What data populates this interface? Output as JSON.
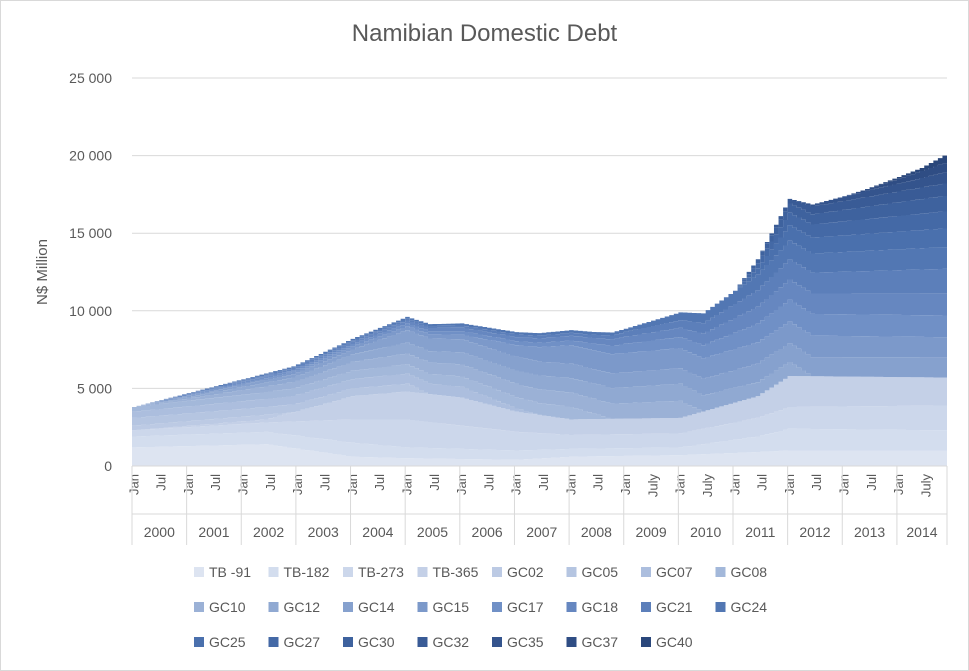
{
  "chart_data": {
    "type": "area",
    "stacked": true,
    "title": "Namibian Domestic Debt",
    "ylabel": "N$ Million",
    "ylim": [
      0,
      25000
    ],
    "yticks": [
      0,
      5000,
      10000,
      15000,
      20000,
      25000
    ],
    "ytick_labels": [
      "0",
      "5 000",
      "10 000",
      "15 000",
      "20 000",
      "25 000"
    ],
    "grid": true,
    "legend": "bottom",
    "start": "2000-01",
    "end": "2014-11",
    "month_labels": [
      {
        "month": "2000-01",
        "label": "Jan"
      },
      {
        "month": "2000-07",
        "label": "Jul"
      },
      {
        "month": "2001-01",
        "label": "Jan"
      },
      {
        "month": "2001-07",
        "label": "Jul"
      },
      {
        "month": "2002-01",
        "label": "Jan"
      },
      {
        "month": "2002-07",
        "label": "Jul"
      },
      {
        "month": "2003-01",
        "label": "Jan"
      },
      {
        "month": "2003-07",
        "label": "Jul"
      },
      {
        "month": "2004-01",
        "label": "Jan"
      },
      {
        "month": "2004-07",
        "label": "Jul"
      },
      {
        "month": "2005-01",
        "label": "Jan"
      },
      {
        "month": "2005-07",
        "label": "Jul"
      },
      {
        "month": "2006-01",
        "label": "Jan"
      },
      {
        "month": "2006-07",
        "label": "Jul"
      },
      {
        "month": "2007-01",
        "label": "Jan"
      },
      {
        "month": "2007-07",
        "label": "Jul"
      },
      {
        "month": "2008-01",
        "label": "Jan"
      },
      {
        "month": "2008-07",
        "label": "Jul"
      },
      {
        "month": "2009-01",
        "label": "Jan"
      },
      {
        "month": "2009-07",
        "label": "July"
      },
      {
        "month": "2010-01",
        "label": "Jan"
      },
      {
        "month": "2010-07",
        "label": "July"
      },
      {
        "month": "2011-01",
        "label": "Jan"
      },
      {
        "month": "2011-07",
        "label": "Jul"
      },
      {
        "month": "2012-01",
        "label": "Jan"
      },
      {
        "month": "2012-07",
        "label": "Jul"
      },
      {
        "month": "2013-01",
        "label": "Jan"
      },
      {
        "month": "2013-07",
        "label": "Jul"
      },
      {
        "month": "2014-01",
        "label": "Jan"
      },
      {
        "month": "2014-07",
        "label": "July"
      }
    ],
    "year_labels": [
      "2000",
      "2001",
      "2002",
      "2003",
      "2004",
      "2005",
      "2006",
      "2007",
      "2008",
      "2009",
      "2010",
      "2011",
      "2012",
      "2013",
      "2014"
    ],
    "series": [
      {
        "name": "TB -91",
        "color": "#dde4f1",
        "points": [
          [
            "2000-01",
            1200
          ],
          [
            "2002-06",
            1400
          ],
          [
            "2003-06",
            900
          ],
          [
            "2004-01",
            600
          ],
          [
            "2005-01",
            500
          ],
          [
            "2007-01",
            400
          ],
          [
            "2008-01",
            600
          ],
          [
            "2010-01",
            700
          ],
          [
            "2011-06",
            900
          ],
          [
            "2012-01",
            1000
          ],
          [
            "2014-11",
            1000
          ]
        ]
      },
      {
        "name": "TB-182",
        "color": "#d3ddee",
        "points": [
          [
            "2000-01",
            700
          ],
          [
            "2002-06",
            800
          ],
          [
            "2004-01",
            900
          ],
          [
            "2005-01",
            700
          ],
          [
            "2007-01",
            600
          ],
          [
            "2008-01",
            500
          ],
          [
            "2010-01",
            500
          ],
          [
            "2011-06",
            1000
          ],
          [
            "2012-01",
            1400
          ],
          [
            "2014-11",
            1300
          ]
        ]
      },
      {
        "name": "TB-273",
        "color": "#ccd7eb",
        "points": [
          [
            "2000-01",
            400
          ],
          [
            "2002-06",
            600
          ],
          [
            "2004-01",
            1500
          ],
          [
            "2005-01",
            1800
          ],
          [
            "2007-01",
            1200
          ],
          [
            "2008-01",
            900
          ],
          [
            "2010-01",
            900
          ],
          [
            "2011-06",
            1200
          ],
          [
            "2012-01",
            1400
          ],
          [
            "2014-11",
            1600
          ]
        ]
      },
      {
        "name": "TB-365",
        "color": "#c4d0e7",
        "points": [
          [
            "2000-01",
            0
          ],
          [
            "2002-06",
            200
          ],
          [
            "2003-06",
            1000
          ],
          [
            "2004-01",
            1500
          ],
          [
            "2005-01",
            1800
          ],
          [
            "2006-01",
            1800
          ],
          [
            "2007-01",
            1300
          ],
          [
            "2008-01",
            1000
          ],
          [
            "2010-01",
            1000
          ],
          [
            "2011-06",
            1400
          ],
          [
            "2012-01",
            2000
          ],
          [
            "2014-11",
            1800
          ]
        ]
      },
      {
        "name": "GC02",
        "color": "#bccae4",
        "points": [
          [
            "2000-01",
            300
          ],
          [
            "2002-06",
            300
          ],
          [
            "2002-12",
            0
          ],
          [
            "2014-11",
            0
          ]
        ]
      },
      {
        "name": "GC05",
        "color": "#b5c5e1",
        "points": [
          [
            "2000-01",
            500
          ],
          [
            "2004-01",
            500
          ],
          [
            "2005-01",
            500
          ],
          [
            "2005-06",
            0
          ],
          [
            "2014-11",
            0
          ]
        ]
      },
      {
        "name": "GC07",
        "color": "#acbede",
        "points": [
          [
            "2000-01",
            400
          ],
          [
            "2006-01",
            700
          ],
          [
            "2007-06",
            0
          ],
          [
            "2014-11",
            0
          ]
        ]
      },
      {
        "name": "GC08",
        "color": "#a3b8da",
        "points": [
          [
            "2000-01",
            300
          ],
          [
            "2005-01",
            600
          ],
          [
            "2008-01",
            800
          ],
          [
            "2008-10",
            0
          ],
          [
            "2014-11",
            0
          ]
        ]
      },
      {
        "name": "GC10",
        "color": "#9bb1d6",
        "points": [
          [
            "2000-01",
            0
          ],
          [
            "2002-01",
            300
          ],
          [
            "2005-01",
            700
          ],
          [
            "2009-01",
            1000
          ],
          [
            "2010-01",
            1100
          ],
          [
            "2010-06",
            0
          ],
          [
            "2014-11",
            0
          ]
        ]
      },
      {
        "name": "GC12",
        "color": "#90a9d2",
        "points": [
          [
            "2000-01",
            0
          ],
          [
            "2003-01",
            300
          ],
          [
            "2005-01",
            700
          ],
          [
            "2010-01",
            1100
          ],
          [
            "2011-06",
            900
          ],
          [
            "2012-01",
            900
          ],
          [
            "2012-06",
            0
          ],
          [
            "2014-11",
            0
          ]
        ]
      },
      {
        "name": "GC14",
        "color": "#86a1ce",
        "points": [
          [
            "2000-01",
            0
          ],
          [
            "2004-01",
            300
          ],
          [
            "2005-01",
            800
          ],
          [
            "2010-01",
            1000
          ],
          [
            "2011-06",
            1200
          ],
          [
            "2014-11",
            1300
          ]
        ]
      },
      {
        "name": "GC15",
        "color": "#7c99ca",
        "points": [
          [
            "2000-01",
            0
          ],
          [
            "2006-01",
            300
          ],
          [
            "2008-01",
            1200
          ],
          [
            "2010-01",
            1300
          ],
          [
            "2012-01",
            1400
          ],
          [
            "2014-11",
            1300
          ]
        ]
      },
      {
        "name": "GC17",
        "color": "#7090c6",
        "points": [
          [
            "2000-01",
            0
          ],
          [
            "2008-01",
            300
          ],
          [
            "2009-01",
            600
          ],
          [
            "2010-01",
            700
          ],
          [
            "2012-01",
            1400
          ],
          [
            "2014-11",
            1400
          ]
        ]
      },
      {
        "name": "GC18",
        "color": "#6687c0",
        "points": [
          [
            "2000-01",
            0
          ],
          [
            "2008-01",
            300
          ],
          [
            "2010-01",
            600
          ],
          [
            "2012-01",
            1300
          ],
          [
            "2014-11",
            1400
          ]
        ]
      },
      {
        "name": "GC21",
        "color": "#5c7fba",
        "points": [
          [
            "2000-01",
            0
          ],
          [
            "2008-06",
            200
          ],
          [
            "2010-01",
            500
          ],
          [
            "2012-01",
            1300
          ],
          [
            "2014-11",
            1600
          ]
        ]
      },
      {
        "name": "GC24",
        "color": "#5277b3",
        "points": [
          [
            "2000-01",
            0
          ],
          [
            "2009-01",
            200
          ],
          [
            "2010-01",
            500
          ],
          [
            "2012-01",
            1200
          ],
          [
            "2014-11",
            1400
          ]
        ]
      },
      {
        "name": "GC25",
        "color": "#4a70ad",
        "points": [
          [
            "2000-01",
            0
          ],
          [
            "2011-01",
            0
          ],
          [
            "2012-01",
            1000
          ],
          [
            "2014-11",
            1200
          ]
        ]
      },
      {
        "name": "GC27",
        "color": "#4469a6",
        "points": [
          [
            "2000-01",
            0
          ],
          [
            "2011-01",
            0
          ],
          [
            "2012-01",
            800
          ],
          [
            "2014-11",
            1100
          ]
        ]
      },
      {
        "name": "GC30",
        "color": "#3e629e",
        "points": [
          [
            "2000-01",
            0
          ],
          [
            "2011-01",
            0
          ],
          [
            "2012-01",
            600
          ],
          [
            "2014-11",
            1000
          ]
        ]
      },
      {
        "name": "GC32",
        "color": "#395b96",
        "points": [
          [
            "2000-01",
            0
          ],
          [
            "2011-06",
            0
          ],
          [
            "2012-06",
            500
          ],
          [
            "2014-11",
            800
          ]
        ]
      },
      {
        "name": "GC35",
        "color": "#34548d",
        "points": [
          [
            "2000-01",
            0
          ],
          [
            "2012-01",
            0
          ],
          [
            "2013-01",
            300
          ],
          [
            "2014-11",
            700
          ]
        ]
      },
      {
        "name": "GC37",
        "color": "#2f4d84",
        "points": [
          [
            "2000-01",
            0
          ],
          [
            "2013-01",
            0
          ],
          [
            "2014-01",
            300
          ],
          [
            "2014-11",
            600
          ]
        ]
      },
      {
        "name": "GC40",
        "color": "#2a477b",
        "points": [
          [
            "2000-01",
            0
          ],
          [
            "2013-06",
            0
          ],
          [
            "2014-06",
            200
          ],
          [
            "2014-11",
            500
          ]
        ]
      }
    ]
  }
}
